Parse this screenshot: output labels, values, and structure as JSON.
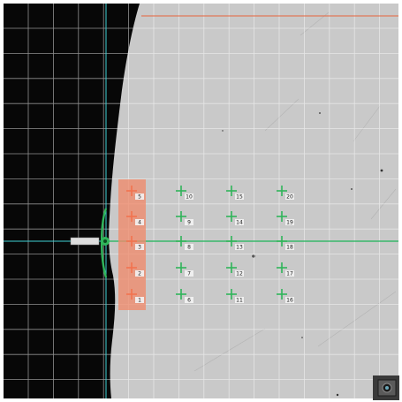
{
  "viewer": {
    "colors": {
      "sample": "#c9c9c9",
      "dark_region": "#070707",
      "grid": "#ffffff",
      "crosshair": "#3fd0d6",
      "marker_green": "#2fb55a",
      "marker_red": "#f2734f",
      "highlight": "#ef8a6b",
      "top_line": "#e8623c"
    },
    "edge_probe_label": "",
    "highlighted_column": {
      "points": [
        {
          "label": "5"
        },
        {
          "label": "4"
        },
        {
          "label": "3"
        },
        {
          "label": "2"
        },
        {
          "label": "1"
        }
      ]
    },
    "grid_columns": [
      {
        "points": [
          {
            "label": "10"
          },
          {
            "label": "9"
          },
          {
            "label": "8"
          },
          {
            "label": "7"
          },
          {
            "label": "6"
          }
        ]
      },
      {
        "points": [
          {
            "label": "15"
          },
          {
            "label": "14"
          },
          {
            "label": "13"
          },
          {
            "label": "12"
          },
          {
            "label": "11"
          }
        ]
      },
      {
        "points": [
          {
            "label": "20"
          },
          {
            "label": "19"
          },
          {
            "label": "18"
          },
          {
            "label": "17"
          },
          {
            "label": "16"
          }
        ]
      }
    ],
    "corner_tool": {
      "icon": "camera-icon"
    }
  }
}
